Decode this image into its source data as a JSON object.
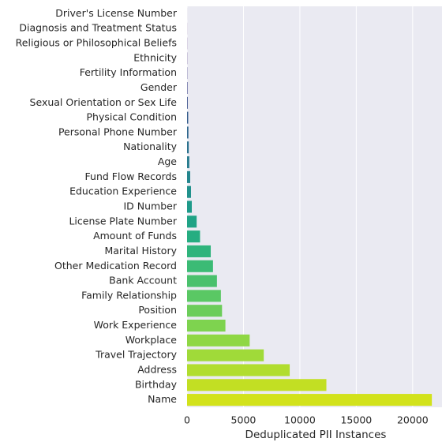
{
  "chart_data": {
    "type": "hbar",
    "xlabel": "Deduplicated PII Instances",
    "categories": [
      "Driver's License Number",
      "Diagnosis and Treatment Status",
      "Religious or Philosophical Beliefs",
      "Ethnicity",
      "Fertility Information",
      "Gender",
      "Sexual Orientation or Sex Life",
      "Physical Condition",
      "Personal Phone Number",
      "Nationality",
      "Age",
      "Fund Flow Records",
      "Education Experience",
      "ID Number",
      "License Plate Number",
      "Amount of Funds",
      "Marital History",
      "Other Medication Record",
      "Bank Account",
      "Family Relationship",
      "Position",
      "Work Experience",
      "Workplace",
      "Travel Trajectory",
      "Address",
      "Birthday",
      "Name"
    ],
    "values": [
      2,
      5,
      10,
      15,
      20,
      40,
      60,
      100,
      120,
      150,
      200,
      280,
      350,
      420,
      850,
      1150,
      2100,
      2300,
      2650,
      3000,
      3100,
      3400,
      5550,
      6800,
      9100,
      12350,
      21700
    ],
    "colors": [
      "#440154",
      "#471063",
      "#481d6f",
      "#472a7a",
      "#443983",
      "#404688",
      "#3b528b",
      "#365d8d",
      "#31688e",
      "#2c728e",
      "#287c8e",
      "#24868e",
      "#21918c",
      "#1f9a8a",
      "#20a386",
      "#26ad81",
      "#2fb47c",
      "#3bbb75",
      "#4ac16d",
      "#5ac864",
      "#6ccd5a",
      "#7ed34f",
      "#8fd744",
      "#a0da39",
      "#b1dd2f",
      "#c2df23",
      "#d2e21b"
    ],
    "xlim": [
      0,
      22600
    ],
    "xticks": [
      0,
      5000,
      10000,
      15000,
      20000
    ],
    "grid": true
  }
}
